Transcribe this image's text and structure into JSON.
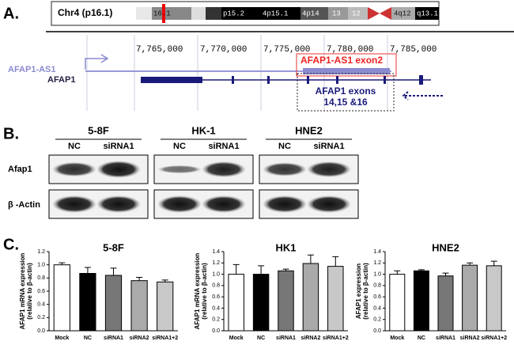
{
  "panel_a": {
    "label": "A.",
    "chromosome": "Chr4 (p16.1)",
    "bands": [
      "16.1",
      "p15.2",
      "4p15.1",
      "4p14",
      "13",
      "12",
      "4q12",
      "q13.1"
    ],
    "positions": [
      "7,765,000",
      "7,770,000",
      "7,775,000",
      "7,780,000",
      "7,785,000"
    ],
    "tracks": [
      "AFAP1-AS1",
      "AFAP1"
    ],
    "exon2_label": "AFAP1-AS1 exon2",
    "exons_label": [
      "AFAP1 exons",
      "14,15 &16"
    ]
  },
  "panel_b": {
    "label": "B.",
    "cell_lines": [
      "5-8F",
      "HK-1",
      "HNE2"
    ],
    "lanes": [
      "NC",
      "siRNA1"
    ],
    "rows": [
      "Afap1",
      "β -Actin"
    ]
  },
  "panel_c_label": "C.",
  "chart_data": [
    {
      "type": "bar",
      "title": "5-8F",
      "ylabel": [
        "AFAP1 mRNA expression",
        "(relative to β-actin)"
      ],
      "categories": [
        "Mock",
        "NC",
        "siRNA1",
        "siRNA2",
        "siRNA1+2"
      ],
      "values": [
        1.0,
        0.87,
        0.84,
        0.76,
        0.74
      ],
      "errors": [
        0.03,
        0.09,
        0.11,
        0.05,
        0.03
      ],
      "colors": [
        "#ffffff",
        "#000000",
        "#777777",
        "#aaaaaa",
        "#c8c8c8"
      ],
      "ylim": [
        0,
        1.2
      ],
      "yticks": [
        {
          "value": 0,
          "label": "0.0"
        },
        {
          "value": 0.2,
          "label": "0.2"
        },
        {
          "value": 0.4,
          "label": "0.4"
        },
        {
          "value": 0.6,
          "label": "0.6"
        },
        {
          "value": 0.8,
          "label": "0.8"
        },
        {
          "value": 1,
          "label": "1.0"
        },
        {
          "value": 1.2,
          "label": "1.2"
        }
      ]
    },
    {
      "type": "bar",
      "title": "HK1",
      "ylabel": [
        "AFAP1 mRNA expression",
        "(relative to β-actin)"
      ],
      "categories": [
        "Mock",
        "NC",
        "siRNA1",
        "siRNA2",
        "siRNA1+2"
      ],
      "values": [
        1.0,
        1.0,
        1.06,
        1.19,
        1.14
      ],
      "errors": [
        0.17,
        0.15,
        0.03,
        0.15,
        0.17
      ],
      "colors": [
        "#ffffff",
        "#000000",
        "#777777",
        "#aaaaaa",
        "#c8c8c8"
      ],
      "ylim": [
        0,
        1.4
      ],
      "yticks": [
        {
          "value": 0,
          "label": "0.0"
        },
        {
          "value": 0.2,
          "label": "0.2"
        },
        {
          "value": 0.4,
          "label": "0.4"
        },
        {
          "value": 0.6,
          "label": "0.6"
        },
        {
          "value": 0.8,
          "label": "0.8"
        },
        {
          "value": 1,
          "label": "1.0"
        },
        {
          "value": 1.2,
          "label": "1.2"
        },
        {
          "value": 1.4,
          "label": "1.4"
        }
      ]
    },
    {
      "type": "bar",
      "title": "HNE2",
      "ylabel": [
        "AFAP1 expression",
        "(relative to β-actin)"
      ],
      "categories": [
        "Mock",
        "NC",
        "siRNA1",
        "siRNA2",
        "siRNA1+2"
      ],
      "values": [
        1.0,
        1.06,
        0.97,
        1.16,
        1.15
      ],
      "errors": [
        0.06,
        0.02,
        0.05,
        0.04,
        0.08
      ],
      "colors": [
        "#ffffff",
        "#000000",
        "#777777",
        "#aaaaaa",
        "#c8c8c8"
      ],
      "ylim": [
        0,
        1.4
      ],
      "yticks": [
        {
          "value": 0,
          "label": "0.0"
        },
        {
          "value": 0.2,
          "label": "0.2"
        },
        {
          "value": 0.4,
          "label": "0.4"
        },
        {
          "value": 0.6,
          "label": "0.6"
        },
        {
          "value": 0.8,
          "label": "0.8"
        },
        {
          "value": 1,
          "label": "1.0"
        },
        {
          "value": 1.2,
          "label": "1.2"
        },
        {
          "value": 1.4,
          "label": "1.4"
        }
      ]
    }
  ]
}
